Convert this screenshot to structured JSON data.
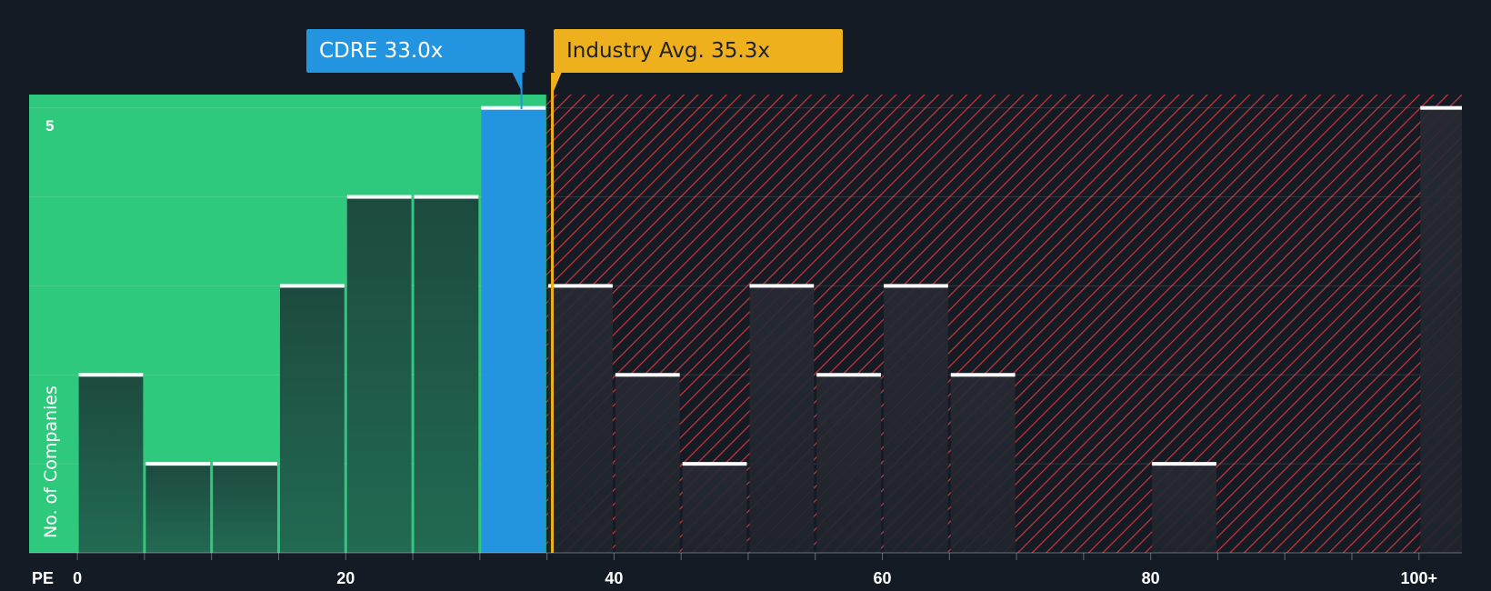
{
  "company_label": "CDRE 33.0x",
  "industry_label": "Industry Avg. 35.3x",
  "colors": {
    "background": "#151b24",
    "fair_zone": "#2ec97d",
    "company_bar": "#2394e0",
    "industry_marker": "#eeb01d",
    "overvalued_hatch": "#c7343a",
    "bar_dark": "#1f4d42",
    "bar_dark_over": "#242731",
    "bar_cap": "#ffffff"
  },
  "chart_data": {
    "type": "bar",
    "x_axis_label": "PE",
    "y_axis_label": "No. of Companies",
    "x_range": [
      -3.6,
      103.2
    ],
    "y_range": [
      0,
      5.15
    ],
    "x_ticks": [
      {
        "value": 0,
        "label": "0"
      },
      {
        "value": 20,
        "label": "20"
      },
      {
        "value": 40,
        "label": "40"
      },
      {
        "value": 60,
        "label": "60"
      },
      {
        "value": 80,
        "label": "80"
      },
      {
        "value": 100,
        "label": "100+"
      }
    ],
    "y_ticks": [
      {
        "value": 5,
        "label": "5"
      }
    ],
    "y_gridlines": [
      1,
      2,
      3,
      4,
      5
    ],
    "bin_width": 5,
    "bins": [
      {
        "start": 0,
        "count": 2
      },
      {
        "start": 5,
        "count": 1
      },
      {
        "start": 10,
        "count": 1
      },
      {
        "start": 15,
        "count": 3
      },
      {
        "start": 20,
        "count": 4
      },
      {
        "start": 25,
        "count": 4
      },
      {
        "start": 30,
        "count": 5
      },
      {
        "start": 35,
        "count": 3
      },
      {
        "start": 40,
        "count": 2
      },
      {
        "start": 45,
        "count": 1
      },
      {
        "start": 50,
        "count": 3
      },
      {
        "start": 55,
        "count": 2
      },
      {
        "start": 60,
        "count": 3
      },
      {
        "start": 65,
        "count": 2
      },
      {
        "start": 70,
        "count": 0
      },
      {
        "start": 75,
        "count": 0
      },
      {
        "start": 80,
        "count": 1
      },
      {
        "start": 85,
        "count": 0
      },
      {
        "start": 90,
        "count": 0
      },
      {
        "start": 95,
        "count": 0
      },
      {
        "start": 100,
        "count": 5
      }
    ],
    "company_value": 33.0,
    "industry_value": 35.3,
    "fair_zone_end": 33.0
  }
}
